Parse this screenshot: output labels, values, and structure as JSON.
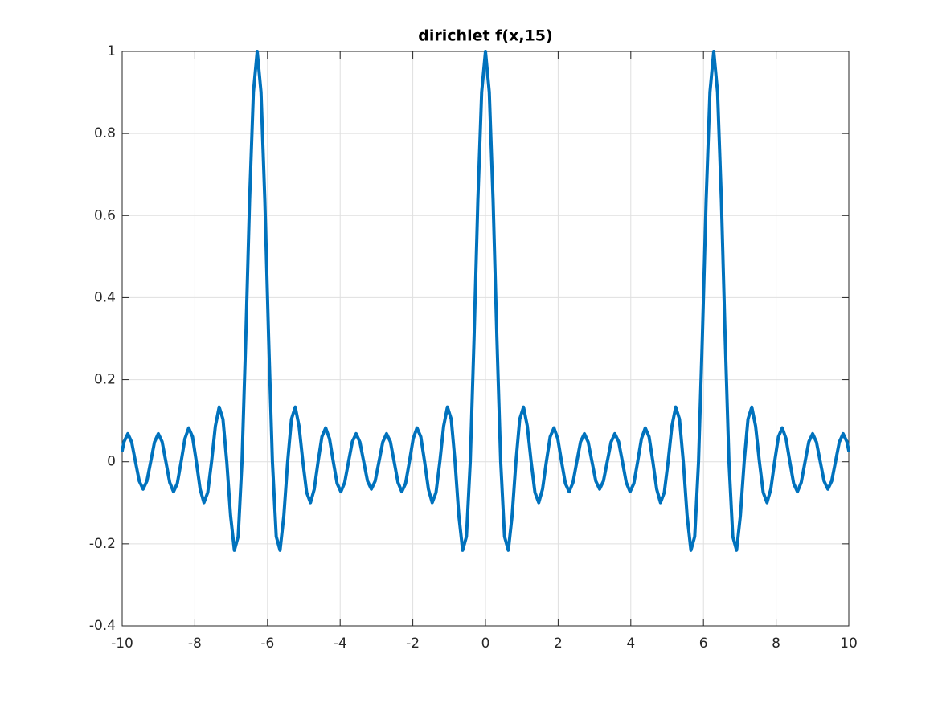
{
  "chart_data": {
    "type": "line",
    "title": "dirichlet f(x,15)",
    "color": "#0072bd",
    "grid": true,
    "xlim": [
      -10,
      10
    ],
    "xticks": [
      -10,
      -8,
      -6,
      -4,
      -2,
      0,
      2,
      4,
      6,
      8,
      10
    ],
    "ylim": [
      -0.4,
      1
    ],
    "yticks": [
      -0.4,
      -0.2,
      0,
      0.2,
      0.4,
      0.6,
      0.8,
      1
    ],
    "x": [
      -10,
      -9.9484,
      -9.8437,
      -9.7389,
      -9.6342,
      -9.5295,
      -9.4248,
      -9.3201,
      -9.2153,
      -9.1106,
      -9.0059,
      -8.9012,
      -8.7965,
      -8.6917,
      -8.587,
      -8.4823,
      -8.3776,
      -8.2729,
      -8.1681,
      -8.0634,
      -7.9587,
      -7.854,
      -7.7493,
      -7.6445,
      -7.5398,
      -7.4351,
      -7.3304,
      -7.2257,
      -7.1209,
      -7.0162,
      -6.9115,
      -6.8068,
      -6.7021,
      -6.5973,
      -6.4926,
      -6.3879,
      -6.2832,
      -6.1785,
      -6.0737,
      -5.969,
      -5.8643,
      -5.7596,
      -5.6549,
      -5.5501,
      -5.4454,
      -5.3407,
      -5.236,
      -5.1313,
      -5.0265,
      -4.9218,
      -4.8171,
      -4.7124,
      -4.6077,
      -4.5029,
      -4.3982,
      -4.2935,
      -4.1888,
      -4.0841,
      -3.9794,
      -3.8746,
      -3.7699,
      -3.6652,
      -3.5605,
      -3.4558,
      -3.351,
      -3.2463,
      -3.1416,
      -3.0369,
      -2.9322,
      -2.8274,
      -2.7227,
      -2.618,
      -2.5133,
      -2.4086,
      -2.3038,
      -2.1991,
      -2.0944,
      -1.9897,
      -1.885,
      -1.7802,
      -1.6755,
      -1.5708,
      -1.4661,
      -1.3614,
      -1.2566,
      -1.1519,
      -1.0472,
      -0.9425,
      -0.8378,
      -0.733,
      -0.6283,
      -0.5236,
      -0.4189,
      -0.3142,
      -0.2094,
      -0.1047,
      0,
      0.1047,
      0.2094,
      0.3142,
      0.4189,
      0.5236,
      0.6283,
      0.733,
      0.8378,
      0.9425,
      1.0472,
      1.1519,
      1.2566,
      1.3614,
      1.4661,
      1.5708,
      1.6755,
      1.7802,
      1.885,
      1.9897,
      2.0944,
      2.1991,
      2.3038,
      2.4086,
      2.5133,
      2.618,
      2.7227,
      2.8274,
      2.9322,
      3.0369,
      3.1416,
      3.2463,
      3.351,
      3.4558,
      3.5605,
      3.6652,
      3.7699,
      3.8746,
      3.9794,
      4.0841,
      4.1888,
      4.2935,
      4.3982,
      4.5029,
      4.6077,
      4.7124,
      4.8171,
      4.9218,
      5.0265,
      5.1313,
      5.236,
      5.3407,
      5.4454,
      5.5501,
      5.6549,
      5.7596,
      5.8643,
      5.969,
      6.0737,
      6.1785,
      6.2832,
      6.3879,
      6.4926,
      6.5973,
      6.7021,
      6.8068,
      6.9115,
      7.0162,
      7.1209,
      7.2257,
      7.3304,
      7.4351,
      7.5398,
      7.6445,
      7.7493,
      7.854,
      7.9587,
      8.0634,
      8.1681,
      8.2729,
      8.3776,
      8.4823,
      8.587,
      8.6917,
      8.7965,
      8.9012,
      9.0059,
      9.1106,
      9.2153,
      9.3201,
      9.4248,
      9.5295,
      9.6342,
      9.7389,
      9.8437,
      9.9484,
      10
    ],
    "values": [
      0.027,
      0.0488,
      0.0682,
      0.0477,
      0,
      -0.0472,
      -0.0667,
      -0.0472,
      0,
      0.0477,
      0.0682,
      0.0488,
      0,
      -0.0505,
      -0.073,
      -0.0529,
      0,
      0.0562,
      0.0824,
      0.0607,
      0,
      -0.0667,
      -0.0996,
      -0.0749,
      0,
      0.0866,
      0.1333,
      0.1038,
      0,
      -0.1315,
      -0.2157,
      -0.1821,
      0,
      0.3013,
      0.6378,
      0.9007,
      1,
      0.9007,
      0.6378,
      0.3013,
      0,
      -0.1821,
      -0.2157,
      -0.1315,
      0,
      0.1038,
      0.1333,
      0.0866,
      0,
      -0.0749,
      -0.0996,
      -0.0667,
      0,
      0.0607,
      0.0824,
      0.0562,
      0,
      -0.0529,
      -0.073,
      -0.0505,
      0,
      0.0488,
      0.0682,
      0.0477,
      0,
      -0.0472,
      -0.0667,
      -0.0472,
      0,
      0.0477,
      0.0682,
      0.0488,
      0,
      -0.0505,
      -0.073,
      -0.0529,
      0,
      0.0562,
      0.0824,
      0.0607,
      0,
      -0.0667,
      -0.0996,
      -0.0749,
      0,
      0.0866,
      0.1333,
      0.1038,
      0,
      -0.1315,
      -0.2157,
      -0.1821,
      0,
      0.3013,
      0.6378,
      0.9007,
      1,
      0.9007,
      0.6378,
      0.3013,
      0,
      -0.1821,
      -0.2157,
      -0.1315,
      0,
      0.1038,
      0.1333,
      0.0866,
      0,
      -0.0749,
      -0.0996,
      -0.0667,
      0,
      0.0607,
      0.0824,
      0.0562,
      0,
      -0.0529,
      -0.073,
      -0.0505,
      0,
      0.0488,
      0.0682,
      0.0477,
      0,
      -0.0472,
      -0.0667,
      -0.0472,
      0,
      0.0477,
      0.0682,
      0.0488,
      0,
      -0.0505,
      -0.073,
      -0.0529,
      0,
      0.0562,
      0.0824,
      0.0607,
      0,
      -0.0667,
      -0.0996,
      -0.0749,
      0,
      0.0866,
      0.1333,
      0.1038,
      0,
      -0.1315,
      -0.2157,
      -0.1821,
      0,
      0.3013,
      0.6378,
      0.9007,
      1,
      0.9007,
      0.6378,
      0.3013,
      0,
      -0.1821,
      -0.2157,
      -0.1315,
      0,
      0.1038,
      0.1333,
      0.0866,
      0,
      -0.0749,
      -0.0996,
      -0.0667,
      0,
      0.0607,
      0.0824,
      0.0562,
      0,
      -0.0529,
      -0.073,
      -0.0505,
      0,
      0.0488,
      0.0682,
      0.0477,
      0,
      -0.0472,
      -0.0667,
      -0.0472,
      0,
      0.0477,
      0.0682,
      0.0488,
      0.027
    ]
  }
}
